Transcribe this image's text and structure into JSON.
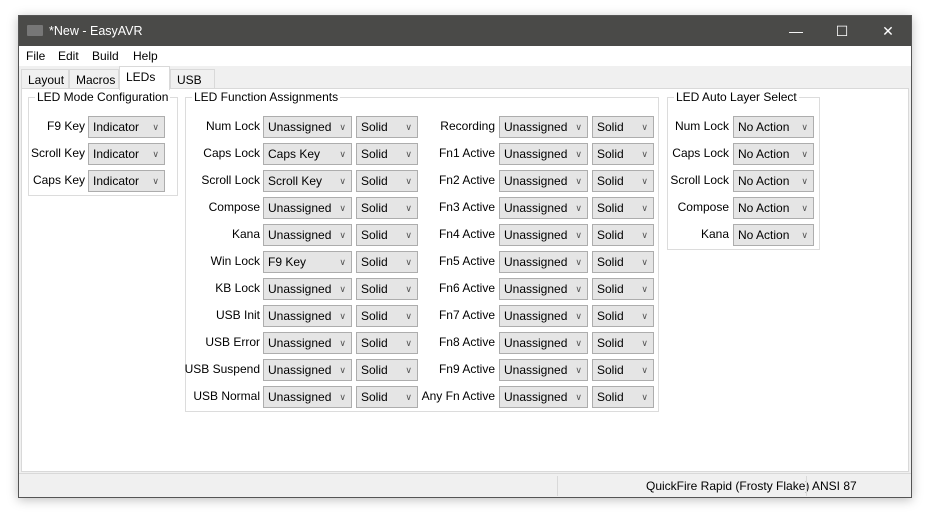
{
  "window": {
    "title": "*New - EasyAVR",
    "minimize": "—",
    "maximize": "☐",
    "close": "✕"
  },
  "menu": [
    "File",
    "Edit",
    "Build",
    "Help"
  ],
  "tabs": [
    "Layout",
    "Macros",
    "LEDs",
    "USB"
  ],
  "active_tab": "LEDs",
  "mode_config": {
    "title": "LED Mode Configuration",
    "rows": [
      {
        "label": "F9 Key",
        "value": "Indicator"
      },
      {
        "label": "Scroll Key",
        "value": "Indicator"
      },
      {
        "label": "Caps Key",
        "value": "Indicator"
      }
    ]
  },
  "function_assignments": {
    "title": "LED Function Assignments",
    "left": [
      {
        "label": "Num Lock",
        "value": "Unassigned",
        "mode": "Solid"
      },
      {
        "label": "Caps Lock",
        "value": "Caps Key",
        "mode": "Solid"
      },
      {
        "label": "Scroll Lock",
        "value": "Scroll Key",
        "mode": "Solid"
      },
      {
        "label": "Compose",
        "value": "Unassigned",
        "mode": "Solid"
      },
      {
        "label": "Kana",
        "value": "Unassigned",
        "mode": "Solid"
      },
      {
        "label": "Win Lock",
        "value": "F9 Key",
        "mode": "Solid"
      },
      {
        "label": "KB Lock",
        "value": "Unassigned",
        "mode": "Solid"
      },
      {
        "label": "USB Init",
        "value": "Unassigned",
        "mode": "Solid"
      },
      {
        "label": "USB Error",
        "value": "Unassigned",
        "mode": "Solid"
      },
      {
        "label": "USB Suspend",
        "value": "Unassigned",
        "mode": "Solid"
      },
      {
        "label": "USB Normal",
        "value": "Unassigned",
        "mode": "Solid"
      }
    ],
    "right": [
      {
        "label": "Recording",
        "value": "Unassigned",
        "mode": "Solid"
      },
      {
        "label": "Fn1 Active",
        "value": "Unassigned",
        "mode": "Solid"
      },
      {
        "label": "Fn2 Active",
        "value": "Unassigned",
        "mode": "Solid"
      },
      {
        "label": "Fn3 Active",
        "value": "Unassigned",
        "mode": "Solid"
      },
      {
        "label": "Fn4 Active",
        "value": "Unassigned",
        "mode": "Solid"
      },
      {
        "label": "Fn5 Active",
        "value": "Unassigned",
        "mode": "Solid"
      },
      {
        "label": "Fn6 Active",
        "value": "Unassigned",
        "mode": "Solid"
      },
      {
        "label": "Fn7 Active",
        "value": "Unassigned",
        "mode": "Solid"
      },
      {
        "label": "Fn8 Active",
        "value": "Unassigned",
        "mode": "Solid"
      },
      {
        "label": "Fn9 Active",
        "value": "Unassigned",
        "mode": "Solid"
      },
      {
        "label": "Any Fn Active",
        "value": "Unassigned",
        "mode": "Solid"
      }
    ]
  },
  "auto_layer": {
    "title": "LED Auto Layer Select",
    "rows": [
      {
        "label": "Num Lock",
        "value": "No Action"
      },
      {
        "label": "Caps Lock",
        "value": "No Action"
      },
      {
        "label": "Scroll Lock",
        "value": "No Action"
      },
      {
        "label": "Compose",
        "value": "No Action"
      },
      {
        "label": "Kana",
        "value": "No Action"
      }
    ]
  },
  "status": {
    "keyboard": "QuickFire Rapid (Frosty Flake)",
    "layout": "ANSI 87"
  }
}
